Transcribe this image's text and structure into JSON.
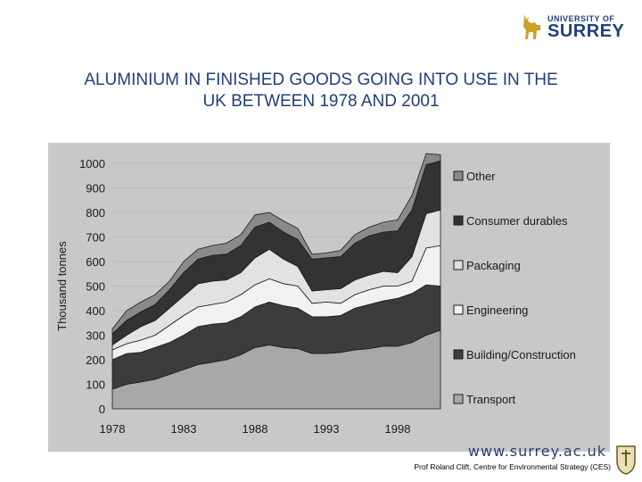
{
  "header": {
    "logo_line1": "UNIVERSITY OF",
    "logo_line2": "SURREY",
    "title_line1": "ALUMINIUM IN FINISHED GOODS GOING INTO USE IN THE",
    "title_line2": "UK BETWEEN 1978 AND 2001"
  },
  "footer": {
    "url": "www.surrey.ac.uk",
    "credit": "Prof Roland Clift, Centre for Environmental Strategy (CES)"
  },
  "colors": {
    "title": "#1f3f7a",
    "chart_bg": "#c8c8c8",
    "transport": "#a8a8a8",
    "building": "#3c3c3c",
    "engineering": "#f2f2f2",
    "packaging": "#e2e2e2",
    "consumer": "#333333",
    "other": "#8a8a8a"
  },
  "chart_data": {
    "type": "area",
    "stacked": true,
    "title": "",
    "xlabel": "",
    "ylabel": "Thousand tonnes",
    "ylim": [
      0,
      1000
    ],
    "y_ticks": [
      0,
      100,
      200,
      300,
      400,
      500,
      600,
      700,
      800,
      900,
      1000
    ],
    "x_tick_labels": [
      "1978",
      "1983",
      "1988",
      "1993",
      "1998"
    ],
    "x": [
      1978,
      1979,
      1980,
      1981,
      1982,
      1983,
      1984,
      1985,
      1986,
      1987,
      1988,
      1989,
      1990,
      1991,
      1992,
      1993,
      1994,
      1995,
      1996,
      1997,
      1998,
      1999,
      2000,
      2001
    ],
    "series": [
      {
        "name": "Transport",
        "values": [
          80,
          100,
          110,
          120,
          140,
          160,
          180,
          190,
          200,
          220,
          250,
          260,
          250,
          245,
          225,
          225,
          230,
          240,
          245,
          255,
          255,
          270,
          300,
          320
        ]
      },
      {
        "name": "Building/Construction",
        "values": [
          120,
          125,
          120,
          130,
          130,
          140,
          155,
          155,
          150,
          155,
          165,
          175,
          170,
          165,
          150,
          150,
          150,
          170,
          180,
          185,
          195,
          200,
          205,
          180
        ]
      },
      {
        "name": "Engineering",
        "values": [
          40,
          40,
          50,
          50,
          70,
          80,
          80,
          80,
          85,
          90,
          90,
          95,
          90,
          90,
          55,
          60,
          50,
          55,
          60,
          60,
          50,
          50,
          150,
          165
        ]
      },
      {
        "name": "Packaging",
        "values": [
          20,
          35,
          55,
          60,
          70,
          80,
          95,
          95,
          90,
          90,
          110,
          120,
          100,
          80,
          50,
          50,
          60,
          60,
          60,
          60,
          55,
          100,
          140,
          145
        ]
      },
      {
        "name": "Consumer durables",
        "values": [
          45,
          60,
          60,
          65,
          75,
          95,
          100,
          105,
          105,
          110,
          125,
          110,
          110,
          110,
          130,
          130,
          130,
          150,
          160,
          160,
          170,
          190,
          200,
          200
        ]
      },
      {
        "name": "Other",
        "values": [
          20,
          40,
          40,
          40,
          35,
          45,
          40,
          40,
          45,
          45,
          50,
          40,
          45,
          45,
          20,
          20,
          25,
          35,
          35,
          40,
          45,
          60,
          45,
          25
        ]
      }
    ],
    "legend_position": "right",
    "legend_order": [
      "Other",
      "Consumer durables",
      "Packaging",
      "Engineering",
      "Building/Construction",
      "Transport"
    ]
  }
}
